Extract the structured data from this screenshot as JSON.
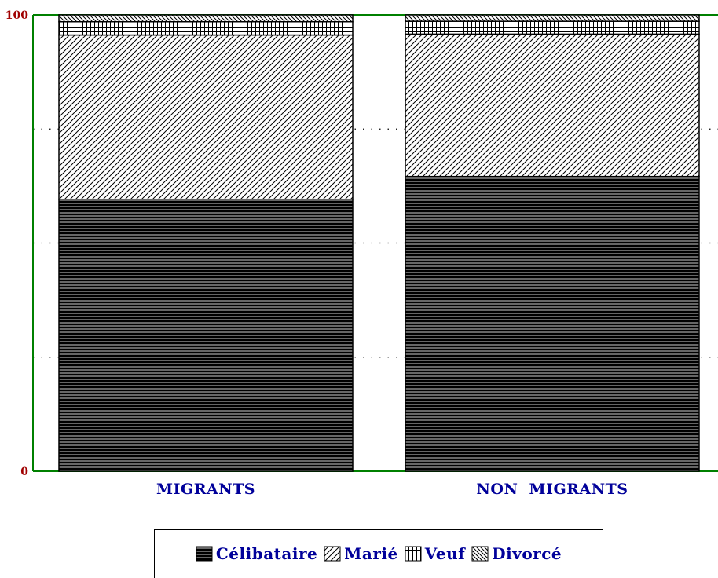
{
  "chart_data": {
    "type": "bar",
    "stacked": true,
    "categories": [
      "MIGRANTS",
      "NON  MIGRANTS"
    ],
    "series": [
      {
        "name": "Célibataire",
        "pattern": "dense-horizontal",
        "values": [
          59.6,
          64.6
        ]
      },
      {
        "name": "Marié",
        "pattern": "diagonal",
        "values": [
          36.0,
          31.2
        ]
      },
      {
        "name": "Veuf",
        "pattern": "grid",
        "values": [
          2.9,
          2.8
        ]
      },
      {
        "name": "Divorcé",
        "pattern": "diagonal-back",
        "values": [
          1.5,
          1.4
        ]
      }
    ],
    "ylim": [
      0,
      100
    ],
    "yticks": [
      "0",
      "100"
    ],
    "gridlines": [
      25,
      50,
      75
    ],
    "grid": "dotted",
    "legend_position": "bottom",
    "colors": {
      "axis": "#008000",
      "tick_label": "#a00000",
      "label": "#00009a",
      "bar_outline": "#000000"
    }
  }
}
